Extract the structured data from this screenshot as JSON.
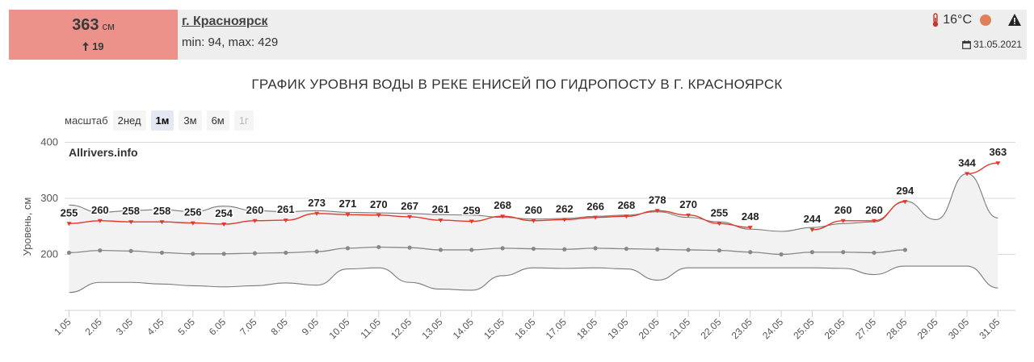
{
  "header": {
    "level_value": "363",
    "level_unit": "см",
    "level_delta": "19",
    "station_link": "г. Красноярск",
    "minmax": "min: 94, max: 429",
    "temperature": "16°C",
    "date": "31.05.2021",
    "colors": {
      "level_box": "#ec928a",
      "status_dot": "#e0805a"
    },
    "icons": [
      "thermometer-icon",
      "status-dot-icon",
      "warning-icon",
      "calendar-icon",
      "arrow-up-icon"
    ]
  },
  "chart_title": "ГРАФИК УРОВНЯ ВОДЫ В РЕКЕ ЕНИСЕЙ ПО ГИДРОПОСТУ В Г. КРАСНОЯРСК",
  "zoom": {
    "label": "масштаб",
    "options": [
      "2нед",
      "1м",
      "3м",
      "6м",
      "1г"
    ],
    "selected": "1м",
    "disabled": [
      "1г"
    ]
  },
  "chart_data": {
    "type": "line",
    "watermark": "Allrivers.info",
    "ylabel": "Уровень, см",
    "ylim": [
      100,
      400
    ],
    "yticks": [
      200,
      300,
      400
    ],
    "grid": true,
    "categories": [
      "1.05",
      "2.05",
      "3.05",
      "4.05",
      "5.05",
      "6.05",
      "7.05",
      "8.05",
      "9.05",
      "10.05",
      "11.05",
      "12.05",
      "13.05",
      "14.05",
      "15.05",
      "16.05",
      "17.05",
      "18.05",
      "19.05",
      "20.05",
      "21.05",
      "22.05",
      "23.05",
      "24.05",
      "25.05",
      "26.05",
      "27.05",
      "28.05",
      "29.05",
      "30.05",
      "31.05"
    ],
    "series": [
      {
        "values": [
          255,
          260,
          258,
          258,
          256,
          254,
          260,
          261,
          273,
          271,
          270,
          267,
          261,
          259,
          268,
          260,
          262,
          266,
          268,
          278,
          270,
          255,
          248,
          null,
          244,
          260,
          260,
          294,
          null,
          344,
          363
        ],
        "labels": [
          "255",
          "260",
          "258",
          "258",
          "256",
          "254",
          "260",
          "261",
          "273",
          "271",
          "270",
          "267",
          "261",
          "259",
          "268",
          "260",
          "262",
          "266",
          "268",
          "278",
          "270",
          "255",
          "248",
          "",
          "244",
          "260",
          "260",
          "294",
          "",
          "344",
          "363"
        ],
        "color": "#e3382b"
      },
      {
        "values": [
          203,
          207,
          206,
          203,
          201,
          201,
          202,
          203,
          205,
          211,
          213,
          212,
          208,
          208,
          211,
          210,
          209,
          211,
          210,
          209,
          208,
          207,
          204,
          200,
          204,
          204,
          203,
          208,
          null,
          null,
          null
        ],
        "color": "#888888"
      }
    ],
    "band_upper": [
      288,
      275,
      278,
      280,
      276,
      286,
      278,
      276,
      278,
      275,
      274,
      273,
      271,
      270,
      266,
      263,
      264,
      268,
      270,
      276,
      266,
      258,
      245,
      241,
      248,
      255,
      258,
      295,
      262,
      344,
      265
    ],
    "band_lower": [
      132,
      150,
      150,
      147,
      144,
      142,
      144,
      149,
      145,
      174,
      176,
      150,
      138,
      136,
      162,
      176,
      175,
      176,
      174,
      154,
      176,
      176,
      176,
      176,
      176,
      175,
      164,
      179,
      179,
      179,
      140
    ]
  }
}
